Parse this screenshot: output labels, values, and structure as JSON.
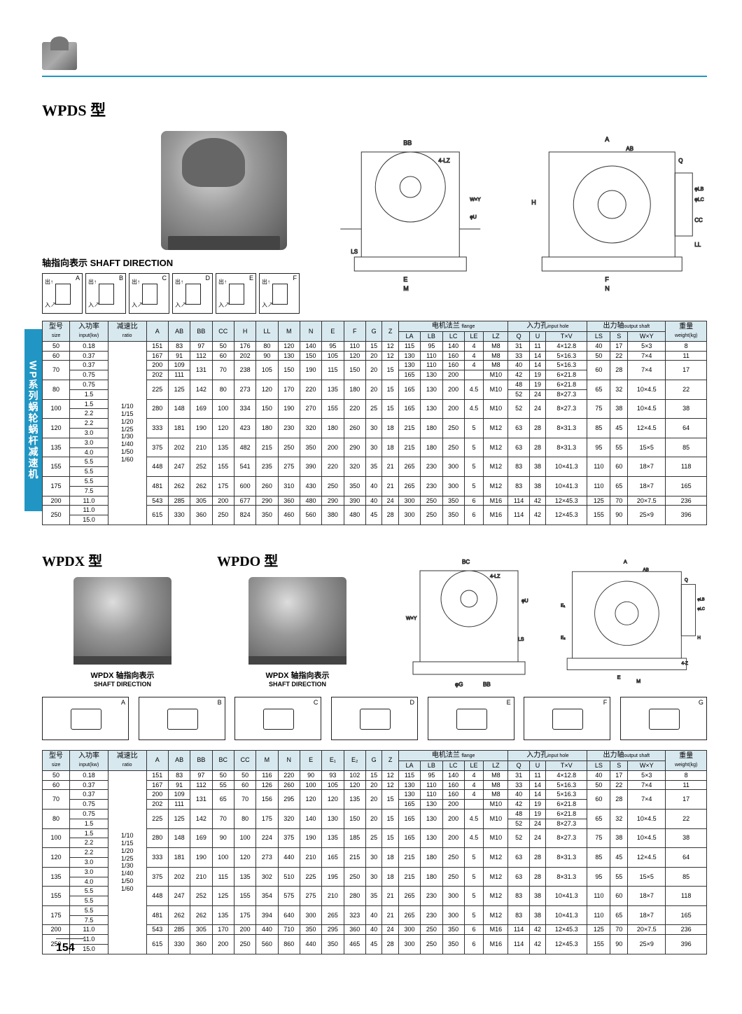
{
  "side_tab": "WP系列蜗轮蜗杆减速机",
  "section1": {
    "title_en": "WPDS",
    "title_cn": "型",
    "shaft_label_cn": "轴指向表示",
    "shaft_label_en": "SHAFT DIRECTION",
    "shaft_boxes": [
      "A",
      "B",
      "C",
      "D",
      "E",
      "F"
    ],
    "shaft_in": "入",
    "shaft_out": "出",
    "diag_labels": [
      "BB",
      "4-LZ",
      "W×Y",
      "φU",
      "LS",
      "E",
      "M",
      "A",
      "AB",
      "Q",
      "φLB",
      "φLC",
      "CC",
      "H",
      "LL",
      "F",
      "N"
    ]
  },
  "section2": {
    "title1_en": "WPDX",
    "title1_cn": "型",
    "title2_en": "WPDO",
    "title2_cn": "型",
    "shaft_label1": "WPDX 轴指向表示",
    "shaft_label2": "WPDX 轴指向表示",
    "shaft_label_en": "SHAFT DIRECTION",
    "shaft_boxes": [
      "A",
      "B",
      "C",
      "D",
      "E",
      "F",
      "G"
    ],
    "diag_labels": [
      "BC",
      "4-LZ",
      "W×Y",
      "LS",
      "φU",
      "φG",
      "BB",
      "A",
      "AB",
      "Q",
      "φLB",
      "φLC",
      "E1",
      "E2",
      "H",
      "4-Z",
      "E",
      "M"
    ]
  },
  "table_headers": {
    "size_cn": "型号",
    "size_en": "size",
    "input_cn": "入功率",
    "input_en": "input(kw)",
    "ratio_cn": "减速比",
    "ratio_en": "ratio",
    "flange_cn": "电机法兰",
    "flange_en": "flange",
    "inhole_cn": "入力孔",
    "inhole_en": "input hole",
    "outshaft_cn": "出力轴",
    "outshaft_en": "output shaft",
    "weight_cn": "重量",
    "weight_en": "weight(kg)",
    "cols1": [
      "A",
      "AB",
      "BB",
      "CC",
      "H",
      "LL",
      "M",
      "N",
      "E",
      "F",
      "G",
      "Z"
    ],
    "flange_cols": [
      "LA",
      "LB",
      "LC",
      "LE",
      "LZ"
    ],
    "inhole_cols": [
      "Q",
      "U",
      "T×V"
    ],
    "outshaft_cols": [
      "LS",
      "S",
      "W×Y"
    ],
    "cols2": [
      "A",
      "AB",
      "BB",
      "BC",
      "CC",
      "M",
      "N",
      "E",
      "E₁",
      "E₂",
      "G",
      "Z"
    ]
  },
  "ratio_values": [
    "1/10",
    "1/15",
    "1/20",
    "1/25",
    "1/30",
    "1/40",
    "1/50",
    "1/60"
  ],
  "table1_rows": [
    {
      "size": "50",
      "kw": [
        "0.18"
      ],
      "d": [
        "151",
        "83",
        "97",
        "50",
        "176",
        "80",
        "120",
        "140",
        "95",
        "110",
        "15",
        "12"
      ],
      "f": [
        [
          "115",
          "95",
          "140",
          "4",
          "M8"
        ]
      ],
      "ih": [
        [
          "31",
          "11",
          "4×12.8"
        ]
      ],
      "os": [
        "40",
        "17",
        "5×3"
      ],
      "w": "8"
    },
    {
      "size": "60",
      "kw": [
        "0.37"
      ],
      "d": [
        "167",
        "91",
        "112",
        "60",
        "202",
        "90",
        "130",
        "150",
        "105",
        "120",
        "20",
        "12"
      ],
      "f": [
        [
          "130",
          "110",
          "160",
          "4",
          "M8"
        ]
      ],
      "ih": [
        [
          "33",
          "14",
          "5×16.3"
        ]
      ],
      "os": [
        "50",
        "22",
        "7×4"
      ],
      "w": "11"
    },
    {
      "size": "70",
      "kw": [
        "0.37",
        "0.75"
      ],
      "d": [
        "200",
        "109",
        "131",
        "70",
        "238",
        "105",
        "150",
        "190",
        "115",
        "150",
        "20",
        "15"
      ],
      "f": [
        [
          "130",
          "110",
          "160",
          "4",
          "M8"
        ],
        [
          "165",
          "130",
          "200",
          "",
          "M10"
        ]
      ],
      "ih": [
        [
          "40",
          "14",
          "5×16.3"
        ],
        [
          "42",
          "19",
          "6×21.8"
        ]
      ],
      "os": [
        "60",
        "28",
        "7×4"
      ],
      "w": "17",
      "r2": [
        "202",
        "111"
      ]
    },
    {
      "size": "80",
      "kw": [
        "0.75",
        "1.5"
      ],
      "d": [
        "225",
        "125",
        "142",
        "80",
        "273",
        "120",
        "170",
        "220",
        "135",
        "180",
        "20",
        "15"
      ],
      "f": [
        [
          "165",
          "130",
          "200",
          "4.5",
          "M10"
        ]
      ],
      "ih": [
        [
          "48",
          "19",
          "6×21.8"
        ],
        [
          "52",
          "24",
          "8×27.3"
        ]
      ],
      "os": [
        "65",
        "32",
        "10×4.5"
      ],
      "w": "22"
    },
    {
      "size": "100",
      "kw": [
        "1.5",
        "2.2"
      ],
      "d": [
        "280",
        "148",
        "169",
        "100",
        "334",
        "150",
        "190",
        "270",
        "155",
        "220",
        "25",
        "15"
      ],
      "f": [
        [
          "165",
          "130",
          "200",
          "4.5",
          "M10"
        ]
      ],
      "ih": [
        [
          "52",
          "24",
          "8×27.3"
        ]
      ],
      "os": [
        "75",
        "38",
        "10×4.5"
      ],
      "w": "38"
    },
    {
      "size": "120",
      "kw": [
        "2.2",
        "3.0"
      ],
      "d": [
        "333",
        "181",
        "190",
        "120",
        "423",
        "180",
        "230",
        "320",
        "180",
        "260",
        "30",
        "18"
      ],
      "f": [
        [
          "215",
          "180",
          "250",
          "5",
          "M12"
        ]
      ],
      "ih": [
        [
          "63",
          "28",
          "8×31.3"
        ]
      ],
      "os": [
        "85",
        "45",
        "12×4.5"
      ],
      "w": "64"
    },
    {
      "size": "135",
      "kw": [
        "3.0",
        "4.0"
      ],
      "d": [
        "375",
        "202",
        "210",
        "135",
        "482",
        "215",
        "250",
        "350",
        "200",
        "290",
        "30",
        "18"
      ],
      "f": [
        [
          "215",
          "180",
          "250",
          "5",
          "M12"
        ]
      ],
      "ih": [
        [
          "63",
          "28",
          "8×31.3"
        ]
      ],
      "os": [
        "95",
        "55",
        "15×5"
      ],
      "w": "85"
    },
    {
      "size": "155",
      "kw": [
        "5.5",
        "5.5"
      ],
      "d": [
        "448",
        "247",
        "252",
        "155",
        "541",
        "235",
        "275",
        "390",
        "220",
        "320",
        "35",
        "21"
      ],
      "f": [
        [
          "265",
          "230",
          "300",
          "5",
          "M12"
        ]
      ],
      "ih": [
        [
          "83",
          "38",
          "10×41.3"
        ]
      ],
      "os": [
        "110",
        "60",
        "18×7"
      ],
      "w": "118"
    },
    {
      "size": "175",
      "kw": [
        "5.5",
        "7.5"
      ],
      "d": [
        "481",
        "262",
        "262",
        "175",
        "600",
        "260",
        "310",
        "430",
        "250",
        "350",
        "40",
        "21"
      ],
      "f": [
        [
          "265",
          "230",
          "300",
          "5",
          "M12"
        ]
      ],
      "ih": [
        [
          "83",
          "38",
          "10×41.3"
        ]
      ],
      "os": [
        "110",
        "65",
        "18×7"
      ],
      "w": "165"
    },
    {
      "size": "200",
      "kw": [
        "11.0"
      ],
      "d": [
        "543",
        "285",
        "305",
        "200",
        "677",
        "290",
        "360",
        "480",
        "290",
        "390",
        "40",
        "24"
      ],
      "f": [
        [
          "300",
          "250",
          "350",
          "6",
          "M16"
        ]
      ],
      "ih": [
        [
          "114",
          "42",
          "12×45.3"
        ]
      ],
      "os": [
        "125",
        "70",
        "20×7.5"
      ],
      "w": "236"
    },
    {
      "size": "250",
      "kw": [
        "11.0",
        "15.0"
      ],
      "d": [
        "615",
        "330",
        "360",
        "250",
        "824",
        "350",
        "460",
        "560",
        "380",
        "480",
        "45",
        "28"
      ],
      "f": [
        [
          "300",
          "250",
          "350",
          "6",
          "M16"
        ]
      ],
      "ih": [
        [
          "114",
          "42",
          "12×45.3"
        ]
      ],
      "os": [
        "155",
        "90",
        "25×9"
      ],
      "w": "396"
    }
  ],
  "table2_rows": [
    {
      "size": "50",
      "kw": [
        "0.18"
      ],
      "d": [
        "151",
        "83",
        "97",
        "50",
        "50",
        "116",
        "220",
        "90",
        "93",
        "102",
        "15",
        "12"
      ],
      "f": [
        [
          "115",
          "95",
          "140",
          "4",
          "M8"
        ]
      ],
      "ih": [
        [
          "31",
          "11",
          "4×12.8"
        ]
      ],
      "os": [
        "40",
        "17",
        "5×3"
      ],
      "w": "8"
    },
    {
      "size": "60",
      "kw": [
        "0.37"
      ],
      "d": [
        "167",
        "91",
        "112",
        "55",
        "60",
        "126",
        "260",
        "100",
        "105",
        "120",
        "20",
        "12"
      ],
      "f": [
        [
          "130",
          "110",
          "160",
          "4",
          "M8"
        ]
      ],
      "ih": [
        [
          "33",
          "14",
          "5×16.3"
        ]
      ],
      "os": [
        "50",
        "22",
        "7×4"
      ],
      "w": "11"
    },
    {
      "size": "70",
      "kw": [
        "0.37",
        "0.75"
      ],
      "d": [
        "200",
        "109",
        "131",
        "65",
        "70",
        "156",
        "295",
        "120",
        "120",
        "135",
        "20",
        "15"
      ],
      "f": [
        [
          "130",
          "110",
          "160",
          "4",
          "M8"
        ],
        [
          "165",
          "130",
          "200",
          "",
          "M10"
        ]
      ],
      "ih": [
        [
          "40",
          "14",
          "5×16.3"
        ],
        [
          "42",
          "19",
          "6×21.8"
        ]
      ],
      "os": [
        "60",
        "28",
        "7×4"
      ],
      "w": "17",
      "r2": [
        "202",
        "111"
      ]
    },
    {
      "size": "80",
      "kw": [
        "0.75",
        "1.5"
      ],
      "d": [
        "225",
        "125",
        "142",
        "70",
        "80",
        "175",
        "320",
        "140",
        "130",
        "150",
        "20",
        "15"
      ],
      "f": [
        [
          "165",
          "130",
          "200",
          "4.5",
          "M10"
        ]
      ],
      "ih": [
        [
          "48",
          "19",
          "6×21.8"
        ],
        [
          "52",
          "24",
          "8×27.3"
        ]
      ],
      "os": [
        "65",
        "32",
        "10×4.5"
      ],
      "w": "22"
    },
    {
      "size": "100",
      "kw": [
        "1.5",
        "2.2"
      ],
      "d": [
        "280",
        "148",
        "169",
        "90",
        "100",
        "224",
        "375",
        "190",
        "135",
        "185",
        "25",
        "15"
      ],
      "f": [
        [
          "165",
          "130",
          "200",
          "4.5",
          "M10"
        ]
      ],
      "ih": [
        [
          "52",
          "24",
          "8×27.3"
        ]
      ],
      "os": [
        "75",
        "38",
        "10×4.5"
      ],
      "w": "38"
    },
    {
      "size": "120",
      "kw": [
        "2.2",
        "3.0"
      ],
      "d": [
        "333",
        "181",
        "190",
        "100",
        "120",
        "273",
        "440",
        "210",
        "165",
        "215",
        "30",
        "18"
      ],
      "f": [
        [
          "215",
          "180",
          "250",
          "5",
          "M12"
        ]
      ],
      "ih": [
        [
          "63",
          "28",
          "8×31.3"
        ]
      ],
      "os": [
        "85",
        "45",
        "12×4.5"
      ],
      "w": "64"
    },
    {
      "size": "135",
      "kw": [
        "3.0",
        "4.0"
      ],
      "d": [
        "375",
        "202",
        "210",
        "115",
        "135",
        "302",
        "510",
        "225",
        "195",
        "250",
        "30",
        "18"
      ],
      "f": [
        [
          "215",
          "180",
          "250",
          "5",
          "M12"
        ]
      ],
      "ih": [
        [
          "63",
          "28",
          "8×31.3"
        ]
      ],
      "os": [
        "95",
        "55",
        "15×5"
      ],
      "w": "85"
    },
    {
      "size": "155",
      "kw": [
        "5.5",
        "5.5"
      ],
      "d": [
        "448",
        "247",
        "252",
        "125",
        "155",
        "354",
        "575",
        "275",
        "210",
        "280",
        "35",
        "21"
      ],
      "f": [
        [
          "265",
          "230",
          "300",
          "5",
          "M12"
        ]
      ],
      "ih": [
        [
          "83",
          "38",
          "10×41.3"
        ]
      ],
      "os": [
        "110",
        "60",
        "18×7"
      ],
      "w": "118"
    },
    {
      "size": "175",
      "kw": [
        "5.5",
        "7.5"
      ],
      "d": [
        "481",
        "262",
        "262",
        "135",
        "175",
        "394",
        "640",
        "300",
        "265",
        "323",
        "40",
        "21"
      ],
      "f": [
        [
          "265",
          "230",
          "300",
          "5",
          "M12"
        ]
      ],
      "ih": [
        [
          "83",
          "38",
          "10×41.3"
        ]
      ],
      "os": [
        "110",
        "65",
        "18×7"
      ],
      "w": "165"
    },
    {
      "size": "200",
      "kw": [
        "11.0"
      ],
      "d": [
        "543",
        "285",
        "305",
        "170",
        "200",
        "440",
        "710",
        "350",
        "295",
        "360",
        "40",
        "24"
      ],
      "f": [
        [
          "300",
          "250",
          "350",
          "6",
          "M16"
        ]
      ],
      "ih": [
        [
          "114",
          "42",
          "12×45.3"
        ]
      ],
      "os": [
        "125",
        "70",
        "20×7.5"
      ],
      "w": "236"
    },
    {
      "size": "250",
      "kw": [
        "11.0",
        "15.0"
      ],
      "d": [
        "615",
        "330",
        "360",
        "200",
        "250",
        "560",
        "860",
        "440",
        "350",
        "465",
        "45",
        "28"
      ],
      "f": [
        [
          "300",
          "250",
          "350",
          "6",
          "M16"
        ]
      ],
      "ih": [
        [
          "114",
          "42",
          "12×45.3"
        ]
      ],
      "os": [
        "155",
        "90",
        "25×9"
      ],
      "w": "396"
    }
  ],
  "page_number": "154",
  "colors": {
    "accent": "#2196c4",
    "header_bg": "#d8e8ef",
    "border": "#333333",
    "text": "#000000"
  }
}
